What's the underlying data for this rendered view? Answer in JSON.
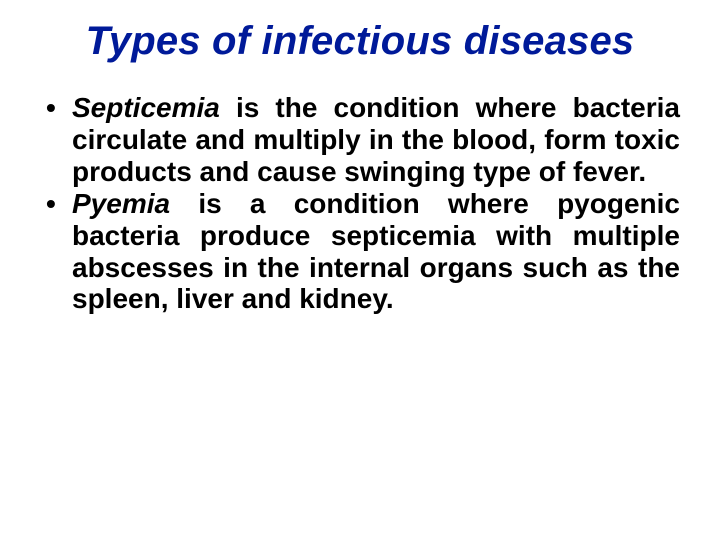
{
  "title": {
    "text": "Types of infectious diseases",
    "color": "#001a99",
    "fontsize": 40
  },
  "body": {
    "color": "#000000",
    "fontsize": 28,
    "bullet_color": "#000000"
  },
  "bullets": [
    {
      "term": "Septicemia",
      "rest": " is the condition where bacteria circulate and multiply in the blood, form toxic products and cause swinging type of fever."
    },
    {
      "term": "Pyemia",
      "rest": " is a condition where pyogenic bacteria produce septicemia with multiple abscesses in the internal organs such as the spleen, liver and kidney."
    }
  ]
}
